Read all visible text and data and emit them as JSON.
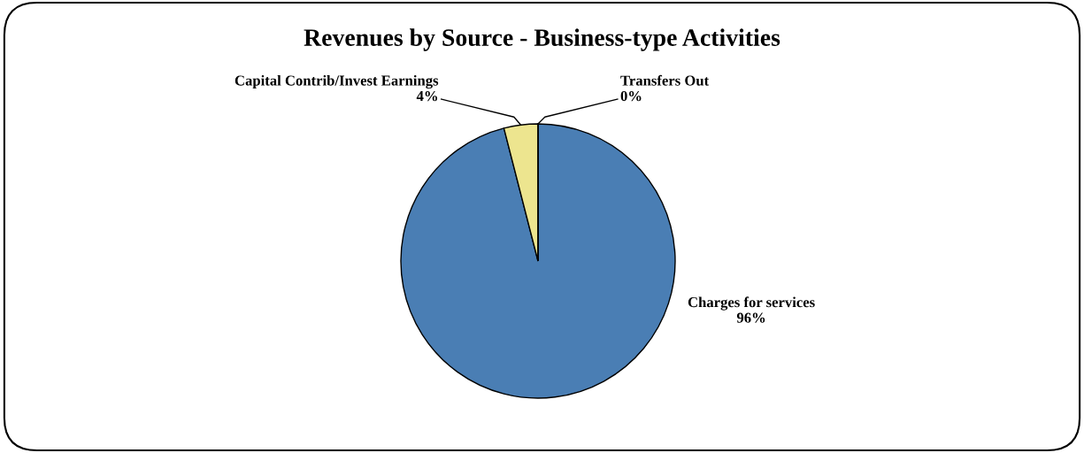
{
  "chart_data": {
    "type": "pie",
    "title": "Revenues by Source - Business-type Activities",
    "categories": [
      "Charges for services",
      "Capital Contrib/Invest Earnings",
      "Transfers Out"
    ],
    "values": [
      96,
      4,
      0
    ],
    "colors": [
      "#4a7eb4",
      "#ede58f",
      "#c0504d"
    ],
    "value_labels": [
      "96%",
      "4%",
      "0%"
    ],
    "legend": false
  }
}
